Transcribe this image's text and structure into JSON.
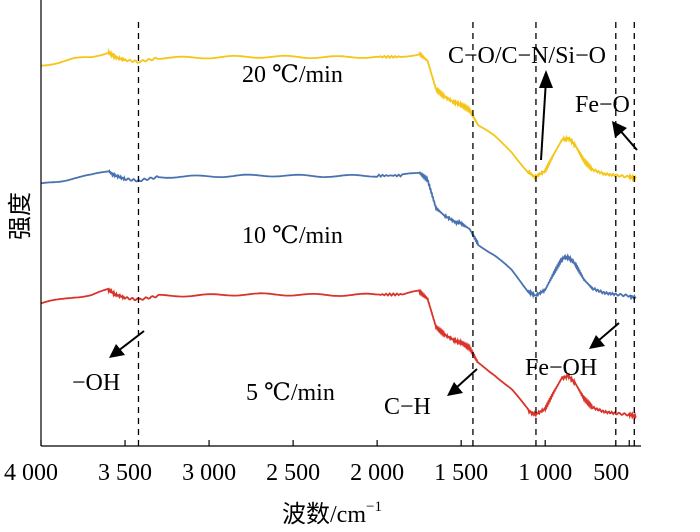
{
  "chart_data": {
    "type": "line",
    "xlabel": "波数/cm",
    "xlabel_sup": "−1",
    "ylabel": "强度",
    "x_reversed": true,
    "xlim": [
      4000,
      430
    ],
    "xticks": [
      {
        "value": 4000,
        "label": "4 000"
      },
      {
        "value": 3500,
        "label": "3 500"
      },
      {
        "value": 3000,
        "label": "3 000"
      },
      {
        "value": 2500,
        "label": "2 500"
      },
      {
        "value": 2000,
        "label": "2 000"
      },
      {
        "value": 1500,
        "label": "1 500"
      },
      {
        "value": 1000,
        "label": "1 000"
      },
      {
        "value": 500,
        "label": "500"
      }
    ],
    "series": [
      {
        "name": "20 ℃/min",
        "color": "#f5c518",
        "offset": 8.0,
        "points": [
          [
            4000,
            0.2
          ],
          [
            3900,
            0.3
          ],
          [
            3800,
            0.42
          ],
          [
            3700,
            0.48
          ],
          [
            3600,
            0.65
          ],
          [
            3560,
            0.48
          ],
          [
            3500,
            0.38
          ],
          [
            3420,
            0.32
          ],
          [
            3300,
            0.45
          ],
          [
            3000,
            0.47
          ],
          [
            2800,
            0.49
          ],
          [
            2600,
            0.49
          ],
          [
            2400,
            0.48
          ],
          [
            2200,
            0.48
          ],
          [
            2000,
            0.49
          ],
          [
            1850,
            0.49
          ],
          [
            1750,
            0.6
          ],
          [
            1700,
            0.35
          ],
          [
            1650,
            -0.6
          ],
          [
            1600,
            -0.85
          ],
          [
            1540,
            -1.05
          ],
          [
            1500,
            -1.12
          ],
          [
            1450,
            -1.3
          ],
          [
            1400,
            -1.8
          ],
          [
            1300,
            -2.2
          ],
          [
            1200,
            -2.7
          ],
          [
            1100,
            -3.4
          ],
          [
            1060,
            -3.55
          ],
          [
            1000,
            -3.35
          ],
          [
            950,
            -2.8
          ],
          [
            900,
            -2.3
          ],
          [
            860,
            -2.25
          ],
          [
            820,
            -2.5
          ],
          [
            770,
            -3.0
          ],
          [
            720,
            -3.3
          ],
          [
            650,
            -3.45
          ],
          [
            580,
            -3.5
          ],
          [
            500,
            -3.55
          ],
          [
            460,
            -3.6
          ]
        ]
      },
      {
        "name": "10 ℃/min",
        "color": "#4a72b0",
        "offset": 4.0,
        "points": [
          [
            4000,
            0.2
          ],
          [
            3900,
            0.3
          ],
          [
            3800,
            0.42
          ],
          [
            3700,
            0.5
          ],
          [
            3600,
            0.65
          ],
          [
            3560,
            0.5
          ],
          [
            3500,
            0.38
          ],
          [
            3420,
            0.32
          ],
          [
            3300,
            0.45
          ],
          [
            3000,
            0.47
          ],
          [
            2800,
            0.49
          ],
          [
            2600,
            0.5
          ],
          [
            2400,
            0.48
          ],
          [
            2200,
            0.48
          ],
          [
            2000,
            0.49
          ],
          [
            1850,
            0.5
          ],
          [
            1750,
            0.6
          ],
          [
            1700,
            0.35
          ],
          [
            1650,
            -0.6
          ],
          [
            1600,
            -0.85
          ],
          [
            1540,
            -1.05
          ],
          [
            1500,
            -1.12
          ],
          [
            1450,
            -1.3
          ],
          [
            1400,
            -1.8
          ],
          [
            1300,
            -2.2
          ],
          [
            1200,
            -2.7
          ],
          [
            1100,
            -3.4
          ],
          [
            1060,
            -3.55
          ],
          [
            1000,
            -3.35
          ],
          [
            950,
            -2.8
          ],
          [
            900,
            -2.3
          ],
          [
            860,
            -2.25
          ],
          [
            820,
            -2.5
          ],
          [
            770,
            -3.0
          ],
          [
            720,
            -3.3
          ],
          [
            650,
            -3.45
          ],
          [
            580,
            -3.5
          ],
          [
            500,
            -3.55
          ],
          [
            460,
            -3.6
          ]
        ]
      },
      {
        "name": "5 ℃/min",
        "color": "#d9342b",
        "offset": 0.0,
        "points": [
          [
            4000,
            0.2
          ],
          [
            3900,
            0.3
          ],
          [
            3800,
            0.42
          ],
          [
            3700,
            0.48
          ],
          [
            3600,
            0.65
          ],
          [
            3560,
            0.5
          ],
          [
            3500,
            0.38
          ],
          [
            3420,
            0.32
          ],
          [
            3300,
            0.45
          ],
          [
            3000,
            0.47
          ],
          [
            2800,
            0.5
          ],
          [
            2600,
            0.5
          ],
          [
            2400,
            0.48
          ],
          [
            2200,
            0.48
          ],
          [
            2000,
            0.49
          ],
          [
            1850,
            0.5
          ],
          [
            1750,
            0.6
          ],
          [
            1700,
            0.35
          ],
          [
            1650,
            -0.6
          ],
          [
            1600,
            -0.85
          ],
          [
            1540,
            -1.05
          ],
          [
            1500,
            -1.12
          ],
          [
            1450,
            -1.3
          ],
          [
            1400,
            -1.8
          ],
          [
            1300,
            -2.2
          ],
          [
            1200,
            -2.7
          ],
          [
            1100,
            -3.4
          ],
          [
            1060,
            -3.55
          ],
          [
            1000,
            -3.35
          ],
          [
            950,
            -2.8
          ],
          [
            900,
            -2.3
          ],
          [
            860,
            -2.25
          ],
          [
            820,
            -2.5
          ],
          [
            770,
            -3.0
          ],
          [
            720,
            -3.3
          ],
          [
            650,
            -3.45
          ],
          [
            580,
            -3.5
          ],
          [
            500,
            -3.55
          ],
          [
            460,
            -3.6
          ]
        ]
      }
    ],
    "ylim": [
      -4.6,
      10.4
    ],
    "marker_lines": [
      3420,
      1430,
      1055,
      580,
      470
    ],
    "annotations": [
      {
        "label": "C−O/C−N/Si−O"
      },
      {
        "label": "Fe−O"
      },
      {
        "label": "−OH"
      },
      {
        "label": "C−H"
      },
      {
        "label": "Fe−OH"
      }
    ],
    "grid": false,
    "legend": "none"
  }
}
